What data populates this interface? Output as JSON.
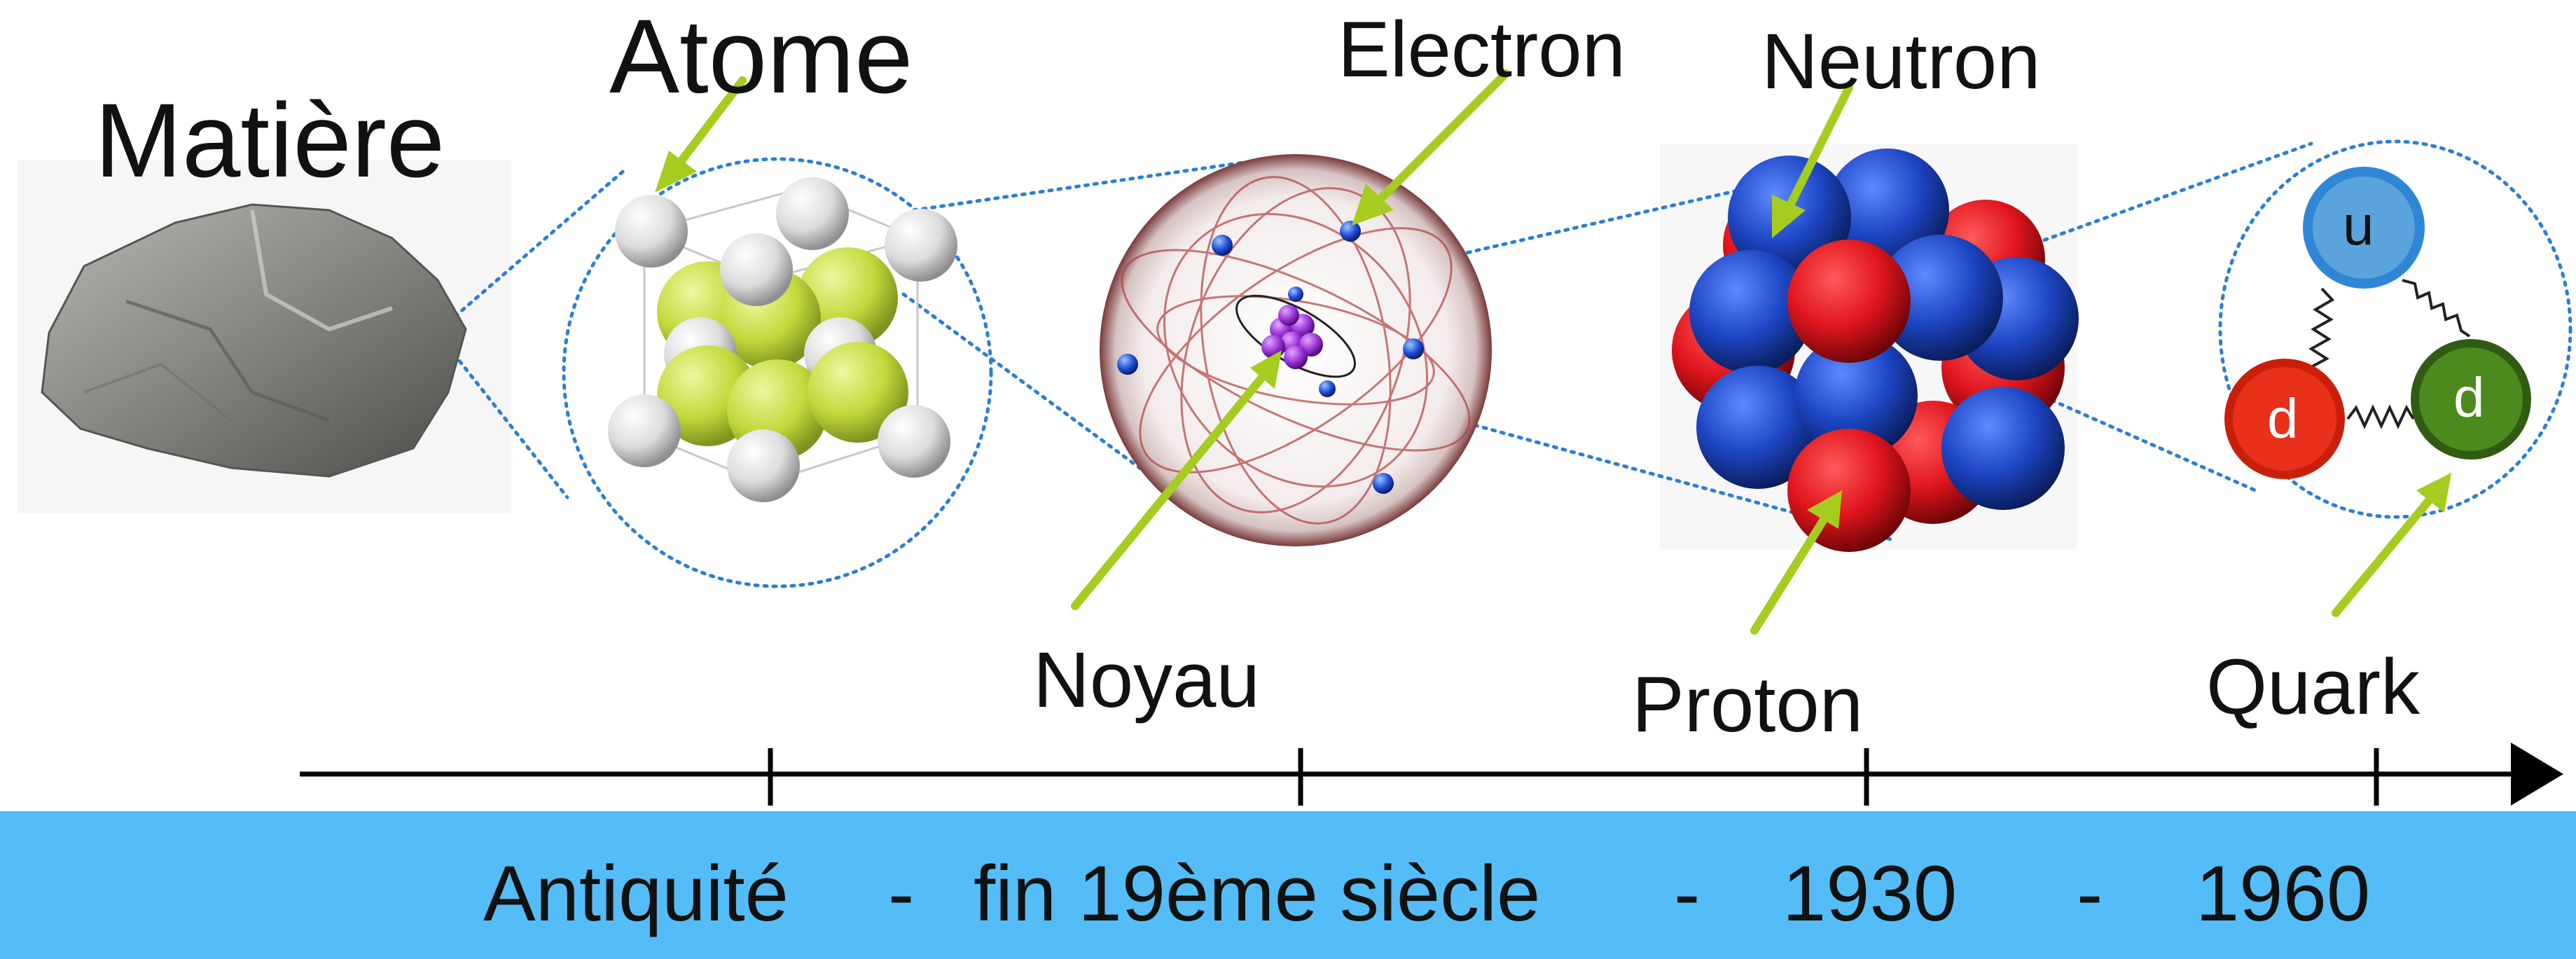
{
  "labels": {
    "matiere": "Matière",
    "atome": "Atome",
    "electron": "Electron",
    "neutron": "Neutron",
    "noyau": "Noyau",
    "proton": "Proton",
    "quark": "Quark",
    "quark_u": "u",
    "quark_d1": "d",
    "quark_d2": "d"
  },
  "timeline": {
    "periods": [
      "Antiquité",
      "fin 19ème siècle",
      "1930",
      "1960"
    ],
    "separator": "-"
  },
  "colors": {
    "banner": "#54bdf7",
    "arrow": "#a6cc1f",
    "dotted": "#2a7fd4",
    "proton": "#e21c24",
    "neutron": "#1f4fc9",
    "atom_yellow": "#c7dc3e",
    "atom_white": "#e4e4e4",
    "quark_u": "#5aa3dc",
    "quark_d_red": "#e8301a",
    "quark_d_green": "#4c8a1e"
  },
  "icons": [
    "rock-icon",
    "crystal-lattice-icon",
    "atom-icon",
    "nucleus-icon",
    "quark-triangle-icon"
  ]
}
